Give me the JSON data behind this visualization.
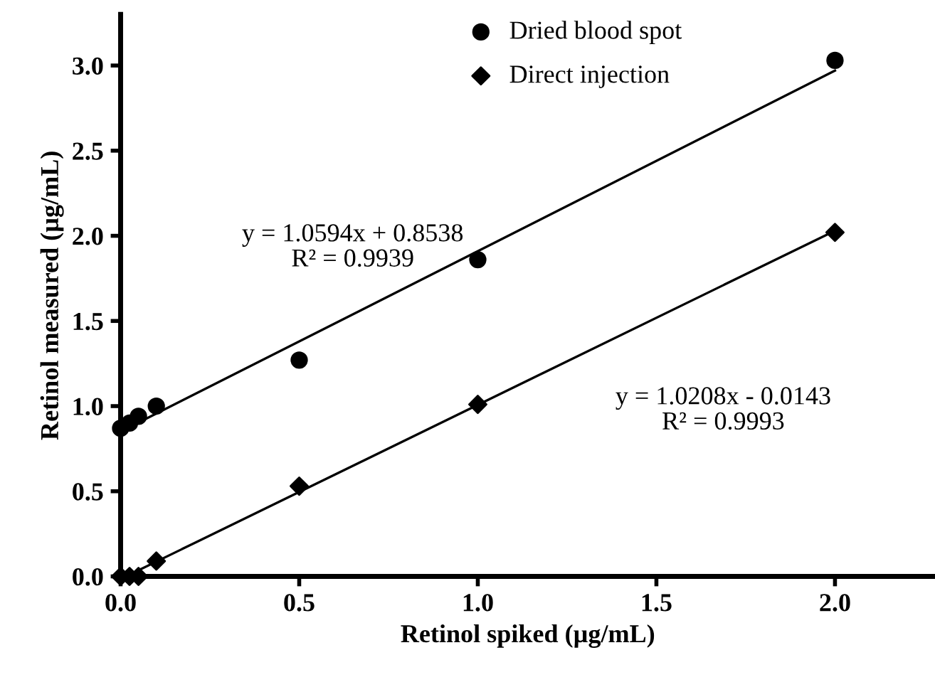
{
  "chart_data": {
    "type": "scatter",
    "xlabel": "Retinol spiked (µg/mL)",
    "ylabel": "Retinol measured (µg/mL)",
    "xlim": [
      0,
      2.28
    ],
    "ylim": [
      0,
      3.3
    ],
    "xticks": [
      {
        "value": 0,
        "label": "0.0"
      },
      0.5,
      {
        "value": 1,
        "label": "1.0"
      },
      1.5,
      {
        "value": 2,
        "label": "2.0"
      }
    ],
    "yticks": [
      {
        "value": 0,
        "label": "0.0"
      },
      0.5,
      {
        "value": 1,
        "label": "1.0"
      },
      1.5,
      {
        "value": 2,
        "label": "2.0"
      },
      2.5,
      {
        "value": 3,
        "label": "3.0"
      }
    ],
    "grid": false,
    "legend": "top",
    "series": [
      {
        "name": "Dried blood spot",
        "color": "#000000",
        "marker": "circle",
        "x": [
          0,
          0.025,
          0.05,
          0.1,
          0.5,
          1,
          2
        ],
        "values": [
          0.87,
          0.9,
          0.94,
          1.0,
          1.27,
          1.86,
          3.03
        ]
      },
      {
        "name": "Direct injection",
        "color": "#000000",
        "marker": "diamond",
        "x": [
          0,
          0.025,
          0.05,
          0.1,
          0.5,
          1,
          2
        ],
        "values": [
          0,
          0,
          0,
          0.09,
          0.53,
          1.01,
          2.02
        ]
      },
      {
        "type": "line",
        "color": "#000000",
        "x": [
          0,
          2
        ],
        "values": [
          0.85,
          2.97
        ]
      },
      {
        "type": "line",
        "color": "#000000",
        "x": [
          0.025,
          2
        ],
        "values": [
          0.01,
          2.03
        ]
      }
    ],
    "annotations": [
      "y = 1.0594x + 0.8538\nR² = 0.9939",
      "y = 1.0208x - 0.0143\nR² = 0.9993"
    ]
  }
}
